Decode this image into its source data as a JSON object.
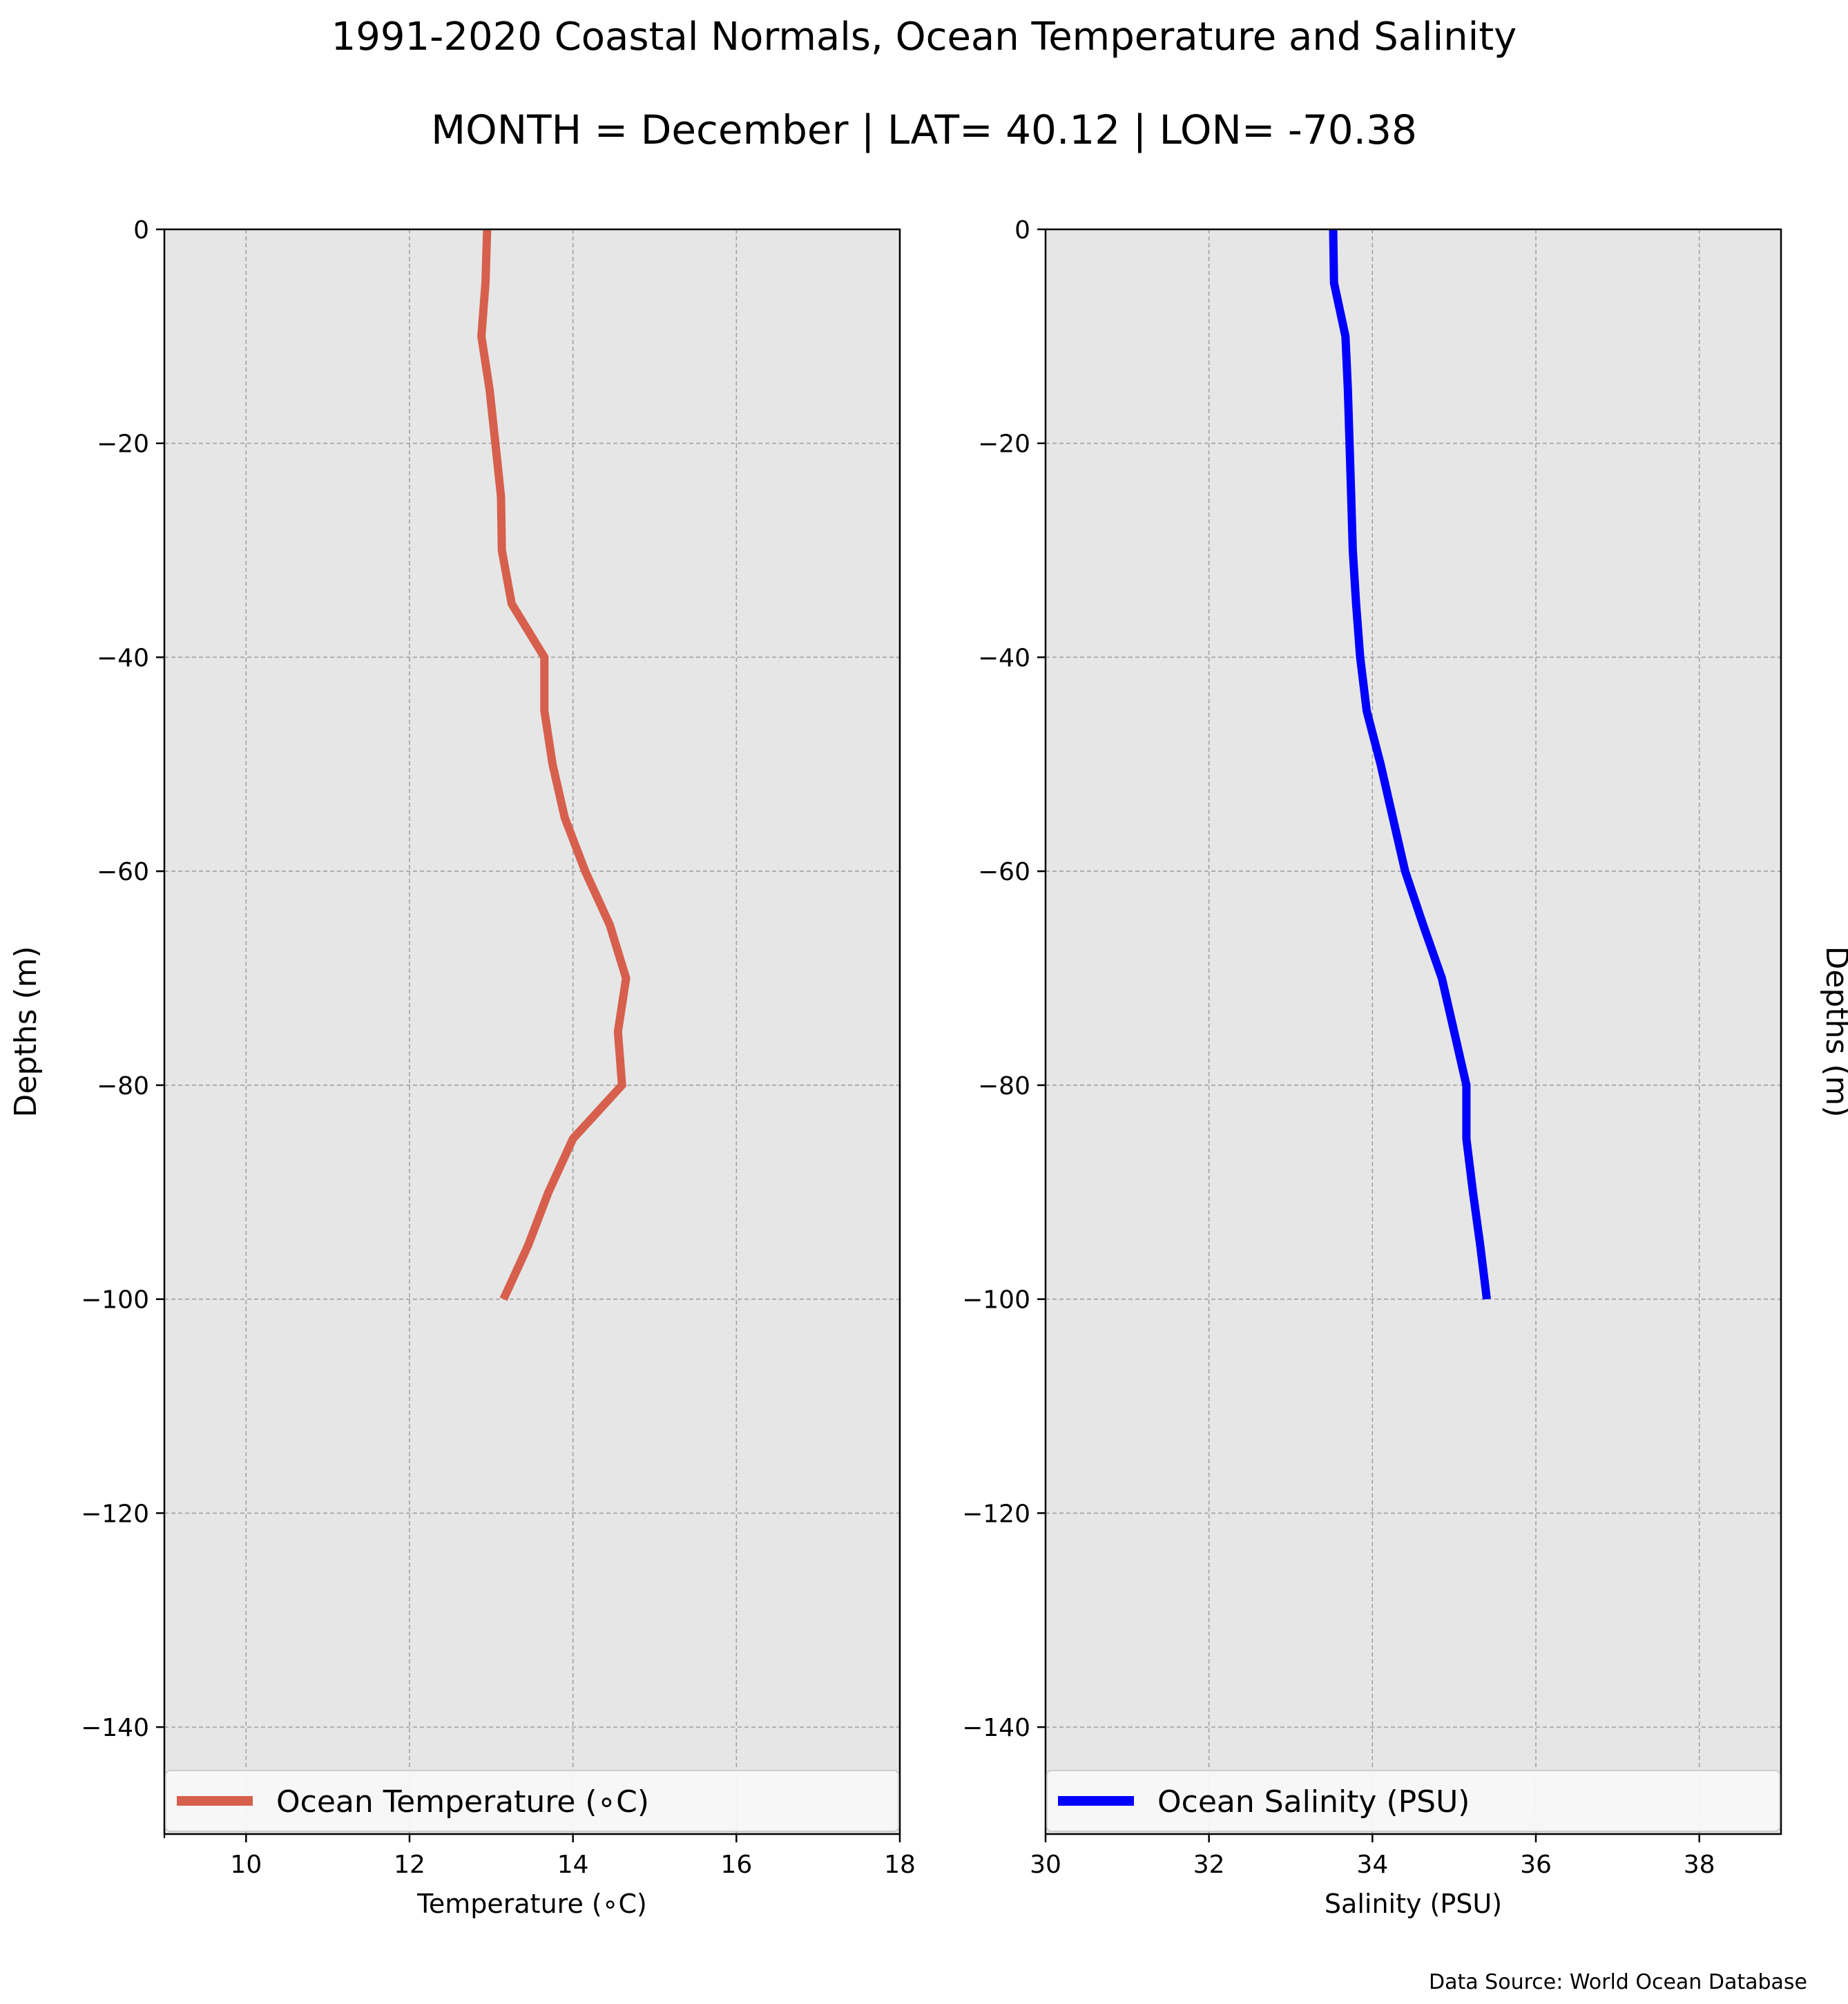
{
  "figure": {
    "title": "1991-2020 Coastal Normals, Ocean Temperature and Salinity",
    "subtitle": "MONTH = December | LAT= 40.12 | LON= -70.38",
    "source_note": "Data Source: World Ocean Database"
  },
  "colors": {
    "panel_bg": "#e6e6e6",
    "grid": "#a0a0a0",
    "temperature": "#d6604d",
    "salinity": "#0000ff",
    "legend_bg": "#f8f8f8"
  },
  "chart_data": [
    {
      "type": "line",
      "title": "",
      "xlabel": "Temperature ($^\\circ$C)",
      "xlabel_display": "Temperature (∘C)",
      "ylabel": "Depths (m)",
      "xlim": [
        9,
        18
      ],
      "ylim": [
        -150,
        0
      ],
      "xticks": [
        10,
        12,
        14,
        16,
        18
      ],
      "yticks": [
        0,
        -20,
        -40,
        -60,
        -80,
        -100,
        -120,
        -140
      ],
      "xtick_labels": [
        "10",
        "12",
        "14",
        "16",
        "18"
      ],
      "ytick_labels": [
        "0",
        "−20",
        "−40",
        "−60",
        "−80",
        "−100",
        "−120",
        "−140"
      ],
      "grid": true,
      "legend": "lower",
      "series": [
        {
          "name": "Ocean Temperature (∘C)",
          "x": [
            12.95,
            12.93,
            12.88,
            12.98,
            13.05,
            13.12,
            13.13,
            13.25,
            13.65,
            13.65,
            13.75,
            13.9,
            14.15,
            14.45,
            14.65,
            14.55,
            14.6,
            14.0,
            13.7,
            13.45,
            13.15
          ],
          "y": [
            0,
            -5,
            -10,
            -15,
            -20,
            -25,
            -30,
            -35,
            -40,
            -45,
            -50,
            -55,
            -60,
            -65,
            -70,
            -75,
            -80,
            -85,
            -90,
            -95,
            -100
          ]
        }
      ]
    },
    {
      "type": "line",
      "title": "",
      "xlabel": "Salinity (PSU)",
      "ylabel": "Depths (m)",
      "xlim": [
        30,
        39
      ],
      "ylim": [
        -150,
        0
      ],
      "xticks": [
        30,
        32,
        34,
        36,
        38
      ],
      "yticks": [
        0,
        -20,
        -40,
        -60,
        -80,
        -100,
        -120,
        -140
      ],
      "xtick_labels": [
        "30",
        "32",
        "34",
        "36",
        "38"
      ],
      "ytick_labels": [
        "0",
        "−20",
        "−40",
        "−60",
        "−80",
        "−100",
        "−120",
        "−140"
      ],
      "grid": true,
      "legend": "lower",
      "series": [
        {
          "name": "Ocean Salinity (PSU)",
          "x": [
            33.52,
            33.53,
            33.67,
            33.7,
            33.72,
            33.74,
            33.76,
            33.8,
            33.85,
            33.93,
            34.1,
            34.25,
            34.4,
            34.62,
            34.85,
            35.0,
            35.15,
            35.15,
            35.23,
            35.32,
            35.4
          ],
          "y": [
            0,
            -5,
            -10,
            -15,
            -20,
            -25,
            -30,
            -35,
            -40,
            -45,
            -50,
            -55,
            -60,
            -65,
            -70,
            -75,
            -80,
            -85,
            -90,
            -95,
            -100
          ]
        }
      ]
    }
  ]
}
